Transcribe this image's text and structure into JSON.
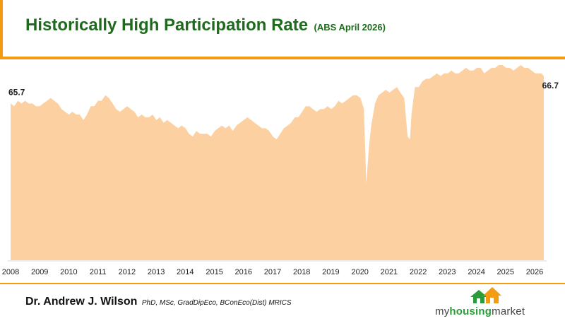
{
  "header": {
    "title": "Historically High Participation Rate",
    "subtitle": "(ABS April 2026)"
  },
  "footer": {
    "author_name": "Dr. Andrew J. Wilson",
    "author_credentials": "PhD, MSc, GradDipEco, BConEco(Dist) MRICS",
    "logo_text_part1": "my",
    "logo_text_part2": "housing",
    "logo_text_part3": "market"
  },
  "colors": {
    "area_fill": "#fdd0a2",
    "brand_orange": "#f39c12",
    "title_green": "#1e6b1e",
    "logo_green": "#2a9d3a"
  },
  "chart_data": {
    "type": "area",
    "title": "Historically High Participation Rate",
    "xlabel": "",
    "ylabel": "",
    "x_ticks": [
      "2008",
      "2009",
      "2010",
      "2011",
      "2012",
      "2013",
      "2014",
      "2015",
      "2016",
      "2017",
      "2018",
      "2019",
      "2020",
      "2021",
      "2022",
      "2023",
      "2024",
      "2025",
      "2026"
    ],
    "ylim": [
      60.0,
      67.1
    ],
    "grid": false,
    "legend": "none",
    "annotations": [
      {
        "label": "65.7",
        "x": 2008.0
      },
      {
        "label": "66.7",
        "x": 2026.29
      }
    ],
    "series": [
      {
        "x": [
          2008.0,
          2008.12,
          2008.25,
          2008.37,
          2008.5,
          2008.62,
          2008.75,
          2008.87,
          2009.0,
          2009.12,
          2009.25,
          2009.37,
          2009.5,
          2009.62,
          2009.75,
          2009.87,
          2010.0,
          2010.12,
          2010.25,
          2010.37,
          2010.5,
          2010.62,
          2010.75,
          2010.87,
          2011.0,
          2011.12,
          2011.25,
          2011.37,
          2011.5,
          2011.62,
          2011.75,
          2011.87,
          2012.0,
          2012.12,
          2012.25,
          2012.37,
          2012.5,
          2012.62,
          2012.75,
          2012.87,
          2013.0,
          2013.12,
          2013.25,
          2013.37,
          2013.5,
          2013.62,
          2013.75,
          2013.87,
          2014.0,
          2014.12,
          2014.25,
          2014.37,
          2014.5,
          2014.62,
          2014.75,
          2014.87,
          2015.0,
          2015.12,
          2015.25,
          2015.37,
          2015.5,
          2015.62,
          2015.75,
          2015.87,
          2016.0,
          2016.12,
          2016.25,
          2016.37,
          2016.5,
          2016.62,
          2016.75,
          2016.87,
          2017.0,
          2017.12,
          2017.25,
          2017.37,
          2017.5,
          2017.62,
          2017.75,
          2017.87,
          2018.0,
          2018.12,
          2018.25,
          2018.37,
          2018.5,
          2018.62,
          2018.75,
          2018.87,
          2019.0,
          2019.12,
          2019.25,
          2019.37,
          2019.5,
          2019.62,
          2019.75,
          2019.87,
          2020.0,
          2020.12,
          2020.2,
          2020.3,
          2020.37,
          2020.5,
          2020.62,
          2020.75,
          2020.87,
          2021.0,
          2021.12,
          2021.25,
          2021.37,
          2021.5,
          2021.62,
          2021.7,
          2021.75,
          2021.87,
          2022.0,
          2022.12,
          2022.25,
          2022.37,
          2022.5,
          2022.62,
          2022.75,
          2022.87,
          2023.0,
          2023.12,
          2023.25,
          2023.37,
          2023.5,
          2023.62,
          2023.75,
          2023.87,
          2024.0,
          2024.12,
          2024.25,
          2024.37,
          2024.5,
          2024.62,
          2024.75,
          2024.87,
          2025.0,
          2025.12,
          2025.25,
          2025.37,
          2025.5,
          2025.62,
          2025.75,
          2025.87,
          2026.0,
          2026.12,
          2026.21,
          2026.29
        ],
        "values": [
          65.7,
          65.6,
          65.8,
          65.7,
          65.8,
          65.7,
          65.7,
          65.6,
          65.6,
          65.7,
          65.8,
          65.9,
          65.8,
          65.7,
          65.5,
          65.4,
          65.3,
          65.4,
          65.3,
          65.3,
          65.1,
          65.3,
          65.6,
          65.6,
          65.8,
          65.8,
          66.0,
          65.9,
          65.7,
          65.5,
          65.4,
          65.5,
          65.6,
          65.5,
          65.4,
          65.2,
          65.3,
          65.2,
          65.2,
          65.3,
          65.1,
          65.2,
          65.0,
          65.1,
          65.0,
          64.9,
          64.8,
          64.9,
          64.8,
          64.6,
          64.5,
          64.7,
          64.6,
          64.6,
          64.6,
          64.5,
          64.7,
          64.8,
          64.9,
          64.8,
          64.9,
          64.7,
          64.9,
          65.0,
          65.1,
          65.2,
          65.1,
          65.0,
          64.9,
          64.8,
          64.8,
          64.7,
          64.5,
          64.4,
          64.6,
          64.8,
          64.9,
          65.0,
          65.2,
          65.2,
          65.4,
          65.6,
          65.6,
          65.5,
          65.4,
          65.5,
          65.5,
          65.6,
          65.5,
          65.6,
          65.8,
          65.7,
          65.8,
          65.9,
          66.0,
          66.0,
          65.9,
          65.5,
          62.8,
          64.2,
          64.9,
          65.7,
          66.0,
          66.1,
          66.2,
          66.1,
          66.2,
          66.3,
          66.1,
          65.9,
          64.5,
          64.4,
          65.3,
          66.3,
          66.3,
          66.5,
          66.6,
          66.6,
          66.7,
          66.8,
          66.7,
          66.8,
          66.8,
          66.9,
          66.8,
          66.8,
          66.9,
          67.0,
          66.9,
          66.9,
          67.0,
          67.0,
          66.8,
          66.9,
          67.0,
          67.0,
          67.1,
          67.1,
          67.0,
          67.0,
          66.9,
          67.0,
          67.1,
          67.0,
          67.0,
          66.9,
          66.8,
          66.8,
          66.8,
          66.7
        ]
      }
    ]
  }
}
